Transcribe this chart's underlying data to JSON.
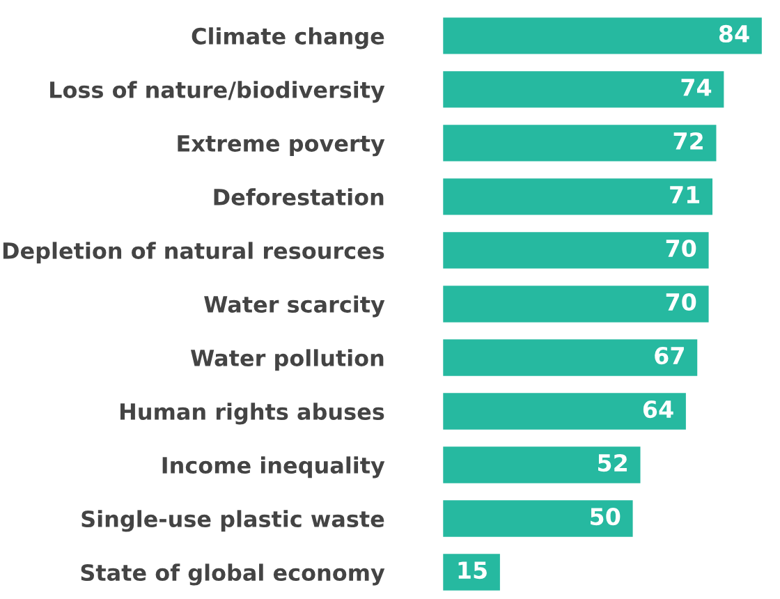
{
  "chart_data": {
    "type": "bar",
    "orientation": "horizontal",
    "categories": [
      "Climate change",
      "Loss of nature/biodiversity",
      "Extreme poverty",
      "Deforestation",
      "Depletion of natural resources",
      "Water scarcity",
      "Water pollution",
      "Human rights abuses",
      "Income inequality",
      "Single-use plastic waste",
      "State of global economy"
    ],
    "values": [
      84,
      74,
      72,
      71,
      70,
      70,
      67,
      64,
      52,
      50,
      15
    ],
    "color": "#26b9a0",
    "data_labels": true,
    "grid": false,
    "legend": false
  }
}
